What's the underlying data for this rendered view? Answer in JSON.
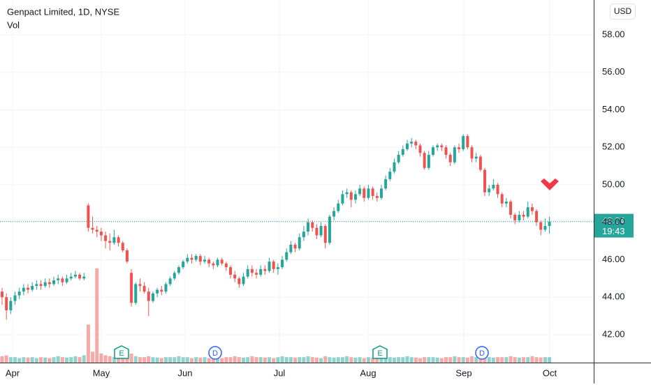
{
  "chart_data": {
    "type": "candlestick",
    "title": "Genpact Limited, 1D, NYSE",
    "subtitle": "Vol",
    "currency": "USD",
    "up_color": "#26a69a",
    "down_color": "#ef5350",
    "ylim": [
      40.51,
      59.86
    ],
    "yticks": [
      {
        "value": 42,
        "label": "42.00"
      },
      {
        "value": 44,
        "label": "44.00"
      },
      {
        "value": 46,
        "label": "46.00"
      },
      {
        "value": 48,
        "label": "48.00"
      },
      {
        "value": 50,
        "label": "50.00"
      },
      {
        "value": 52,
        "label": "52.00"
      },
      {
        "value": 54,
        "label": "54.00"
      },
      {
        "value": 56,
        "label": "56.00"
      },
      {
        "value": 58,
        "label": "58.00"
      }
    ],
    "xticks": [
      "Apr",
      "May",
      "Jun",
      "Jul",
      "Aug",
      "Sep",
      "Oct"
    ],
    "grid": true,
    "last_price": 48.04,
    "countdown": "19:43",
    "events": [
      "E",
      "D",
      "E",
      "D"
    ],
    "volume_lim": [
      0,
      20
    ],
    "ohlc": [
      [
        44.3,
        44.5,
        43.6,
        44.0
      ],
      [
        44.0,
        44.2,
        42.8,
        43.3
      ],
      [
        43.3,
        44.0,
        43.1,
        43.8
      ],
      [
        43.8,
        44.3,
        43.6,
        44.1
      ],
      [
        44.1,
        44.5,
        43.9,
        44.3
      ],
      [
        44.3,
        44.7,
        44.1,
        44.5
      ],
      [
        44.5,
        44.7,
        44.2,
        44.4
      ],
      [
        44.4,
        44.8,
        44.3,
        44.6
      ],
      [
        44.6,
        44.9,
        44.4,
        44.7
      ],
      [
        44.7,
        44.9,
        44.4,
        44.6
      ],
      [
        44.6,
        45.0,
        44.5,
        44.8
      ],
      [
        44.8,
        45.0,
        44.5,
        44.7
      ],
      [
        44.7,
        45.1,
        44.6,
        44.9
      ],
      [
        44.9,
        45.2,
        44.7,
        45.0
      ],
      [
        45.0,
        45.1,
        44.6,
        44.8
      ],
      [
        44.8,
        45.2,
        44.7,
        45.0
      ],
      [
        45.0,
        45.3,
        44.9,
        45.1
      ],
      [
        45.1,
        45.4,
        45.0,
        45.2
      ],
      [
        45.2,
        45.3,
        44.9,
        45.0
      ],
      [
        45.0,
        45.3,
        44.9,
        45.1
      ],
      [
        48.9,
        49.0,
        47.5,
        47.7
      ],
      [
        47.7,
        48.3,
        47.4,
        47.6
      ],
      [
        47.6,
        47.8,
        47.2,
        47.5
      ],
      [
        47.5,
        47.7,
        47.0,
        47.3
      ],
      [
        47.3,
        47.5,
        46.6,
        47.0
      ],
      [
        47.0,
        47.4,
        46.5,
        46.9
      ],
      [
        46.9,
        47.6,
        46.8,
        47.2
      ],
      [
        47.2,
        47.3,
        46.7,
        46.9
      ],
      [
        46.9,
        47.0,
        46.4,
        46.5
      ],
      [
        46.5,
        46.6,
        45.8,
        45.9
      ],
      [
        45.3,
        45.5,
        43.5,
        43.7
      ],
      [
        43.7,
        44.8,
        43.6,
        44.7
      ],
      [
        44.7,
        45.0,
        44.3,
        44.6
      ],
      [
        44.6,
        44.8,
        44.2,
        44.3
      ],
      [
        44.3,
        44.5,
        43.0,
        43.8
      ],
      [
        43.8,
        44.3,
        43.7,
        44.2
      ],
      [
        44.2,
        44.5,
        44.0,
        44.4
      ],
      [
        44.4,
        44.6,
        44.1,
        44.3
      ],
      [
        44.3,
        44.8,
        44.2,
        44.7
      ],
      [
        44.7,
        45.1,
        44.6,
        45.0
      ],
      [
        45.0,
        45.4,
        44.9,
        45.3
      ],
      [
        45.3,
        45.7,
        45.2,
        45.6
      ],
      [
        45.6,
        46.0,
        45.5,
        45.9
      ],
      [
        45.9,
        46.3,
        45.8,
        46.1
      ],
      [
        46.1,
        46.3,
        45.8,
        46.0
      ],
      [
        46.0,
        46.3,
        45.9,
        46.2
      ],
      [
        46.2,
        46.3,
        45.7,
        45.9
      ],
      [
        45.9,
        46.2,
        45.8,
        46.0
      ],
      [
        46.0,
        46.1,
        45.6,
        45.8
      ],
      [
        45.8,
        45.9,
        45.5,
        45.7
      ],
      [
        45.7,
        46.1,
        45.6,
        46.0
      ],
      [
        46.0,
        46.1,
        45.7,
        45.8
      ],
      [
        45.8,
        45.9,
        45.4,
        45.6
      ],
      [
        45.6,
        45.7,
        45.0,
        45.2
      ],
      [
        45.2,
        45.4,
        44.8,
        45.0
      ],
      [
        45.0,
        45.1,
        44.5,
        44.7
      ],
      [
        44.7,
        45.3,
        44.6,
        45.1
      ],
      [
        45.1,
        45.7,
        45.0,
        45.5
      ],
      [
        45.5,
        45.7,
        45.1,
        45.3
      ],
      [
        45.3,
        45.5,
        45.0,
        45.2
      ],
      [
        45.2,
        45.7,
        45.1,
        45.5
      ],
      [
        45.5,
        45.7,
        45.2,
        45.4
      ],
      [
        45.4,
        46.1,
        45.3,
        45.9
      ],
      [
        45.9,
        46.0,
        45.3,
        45.5
      ],
      [
        45.5,
        45.8,
        45.2,
        45.6
      ],
      [
        45.6,
        46.2,
        45.5,
        46.0
      ],
      [
        46.0,
        46.6,
        45.9,
        46.4
      ],
      [
        46.4,
        47.0,
        46.3,
        46.8
      ],
      [
        46.8,
        46.9,
        46.4,
        46.6
      ],
      [
        46.6,
        47.4,
        46.5,
        47.2
      ],
      [
        47.2,
        47.8,
        47.0,
        47.5
      ],
      [
        47.5,
        48.2,
        47.3,
        48.0
      ],
      [
        48.0,
        48.1,
        47.5,
        47.7
      ],
      [
        47.7,
        47.9,
        47.1,
        47.3
      ],
      [
        47.3,
        48.0,
        47.2,
        47.8
      ],
      [
        47.8,
        47.9,
        46.6,
        46.9
      ],
      [
        46.9,
        48.4,
        46.8,
        48.3
      ],
      [
        48.3,
        48.8,
        48.1,
        48.6
      ],
      [
        48.6,
        49.2,
        48.5,
        49.0
      ],
      [
        49.0,
        49.7,
        48.9,
        49.5
      ],
      [
        49.5,
        49.8,
        49.3,
        49.6
      ],
      [
        49.6,
        49.7,
        48.8,
        49.2
      ],
      [
        49.2,
        49.7,
        49.0,
        49.5
      ],
      [
        49.5,
        50.0,
        49.4,
        49.8
      ],
      [
        49.8,
        49.9,
        49.1,
        49.3
      ],
      [
        49.3,
        50.0,
        49.2,
        49.8
      ],
      [
        49.8,
        49.9,
        49.2,
        49.4
      ],
      [
        49.4,
        49.6,
        49.1,
        49.3
      ],
      [
        49.3,
        50.0,
        49.2,
        49.8
      ],
      [
        49.8,
        50.5,
        49.7,
        50.3
      ],
      [
        50.3,
        50.9,
        50.2,
        50.7
      ],
      [
        50.7,
        51.4,
        50.6,
        51.2
      ],
      [
        51.2,
        51.8,
        51.1,
        51.6
      ],
      [
        51.6,
        52.1,
        51.5,
        51.9
      ],
      [
        51.9,
        52.4,
        51.8,
        52.2
      ],
      [
        52.2,
        52.5,
        52.0,
        52.3
      ],
      [
        52.3,
        52.4,
        51.9,
        52.1
      ],
      [
        52.1,
        52.2,
        51.5,
        51.7
      ],
      [
        51.7,
        51.8,
        50.8,
        50.9
      ],
      [
        50.9,
        51.8,
        50.8,
        51.6
      ],
      [
        51.6,
        52.1,
        51.5,
        52.0
      ],
      [
        52.0,
        52.2,
        51.8,
        52.1
      ],
      [
        52.1,
        52.2,
        51.8,
        52.0
      ],
      [
        52.0,
        52.1,
        51.4,
        51.6
      ],
      [
        51.6,
        51.7,
        51.0,
        51.2
      ],
      [
        51.2,
        52.1,
        51.1,
        52.0
      ],
      [
        52.0,
        52.2,
        51.7,
        51.9
      ],
      [
        51.9,
        52.7,
        51.8,
        52.6
      ],
      [
        52.6,
        52.7,
        51.9,
        52.0
      ],
      [
        52.0,
        52.1,
        51.2,
        51.4
      ],
      [
        51.4,
        51.7,
        51.2,
        51.5
      ],
      [
        51.5,
        51.6,
        50.7,
        50.8
      ],
      [
        50.8,
        50.9,
        49.4,
        49.6
      ],
      [
        49.6,
        50.0,
        49.4,
        49.8
      ],
      [
        49.8,
        50.3,
        49.7,
        50.0
      ],
      [
        50.0,
        50.1,
        49.3,
        49.5
      ],
      [
        49.5,
        49.6,
        48.8,
        49.0
      ],
      [
        49.0,
        49.3,
        48.8,
        49.1
      ],
      [
        49.1,
        49.2,
        48.2,
        48.4
      ],
      [
        48.4,
        48.5,
        47.9,
        48.1
      ],
      [
        48.1,
        48.6,
        48.0,
        48.4
      ],
      [
        48.4,
        48.6,
        48.1,
        48.3
      ],
      [
        48.3,
        49.1,
        48.2,
        48.8
      ],
      [
        48.8,
        49.0,
        48.4,
        48.6
      ],
      [
        48.6,
        48.7,
        47.8,
        48.0
      ],
      [
        48.0,
        48.1,
        47.3,
        47.6
      ],
      [
        47.6,
        48.2,
        47.5,
        47.8
      ],
      [
        47.8,
        48.3,
        47.4,
        48.04
      ]
    ],
    "volume": [
      0.35,
      0.4,
      0.3,
      0.3,
      0.25,
      0.3,
      0.28,
      0.3,
      0.25,
      0.3,
      0.28,
      0.25,
      0.3,
      0.35,
      0.3,
      0.28,
      0.3,
      0.35,
      0.3,
      0.4,
      2.1,
      0.6,
      5.2,
      0.5,
      0.4,
      0.35,
      0.3,
      0.3,
      0.3,
      0.4,
      0.5,
      0.35,
      0.3,
      0.3,
      0.35,
      0.3,
      0.28,
      0.25,
      0.3,
      0.3,
      0.3,
      0.35,
      0.3,
      0.3,
      0.25,
      0.3,
      0.28,
      0.3,
      0.25,
      0.3,
      0.28,
      0.25,
      0.3,
      0.3,
      0.35,
      0.3,
      0.28,
      0.3,
      0.35,
      0.3,
      0.3,
      0.28,
      0.3,
      0.25,
      0.3,
      0.35,
      0.3,
      0.3,
      0.28,
      0.3,
      0.3,
      0.35,
      0.3,
      0.28,
      0.25,
      0.35,
      0.3,
      0.28,
      0.3,
      0.3,
      0.35,
      0.3,
      0.28,
      0.3,
      0.25,
      0.3,
      0.28,
      0.3,
      0.3,
      0.35,
      0.3,
      0.28,
      0.3,
      0.3,
      0.35,
      0.3,
      0.28,
      0.25,
      0.3,
      0.3,
      0.3,
      0.28,
      0.25,
      0.3,
      0.3,
      0.35,
      0.3,
      0.3,
      0.28,
      0.35,
      0.3,
      0.3,
      0.35,
      0.3,
      0.28,
      0.3,
      0.3,
      0.3,
      0.35,
      0.3,
      0.28,
      0.3,
      0.3,
      0.35,
      0.3,
      0.28,
      0.3,
      0.3
    ]
  }
}
